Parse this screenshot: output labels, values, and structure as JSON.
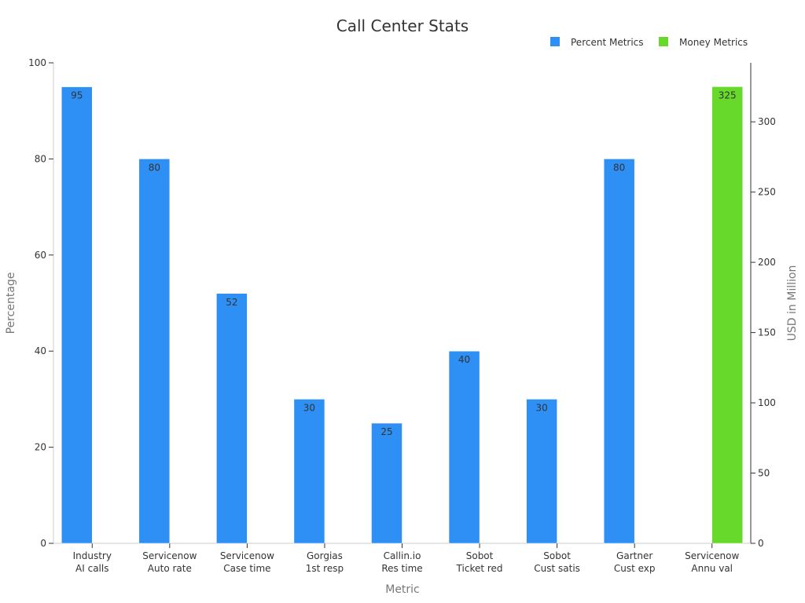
{
  "chart_data": {
    "type": "bar",
    "title": "Call Center Stats",
    "xlabel": "Metric",
    "ylabel": "Percentage",
    "y2label": "USD in Million",
    "ylim": [
      0,
      100
    ],
    "y2lim": [
      0,
      342
    ],
    "yticks": [
      0,
      20,
      40,
      60,
      80,
      100
    ],
    "y2ticks": [
      0,
      50,
      100,
      150,
      200,
      250,
      300
    ],
    "legend_position": "top-right",
    "categories": [
      [
        "Industry",
        "AI calls"
      ],
      [
        "Servicenow",
        "Auto rate"
      ],
      [
        "Servicenow",
        "Case time"
      ],
      [
        "Gorgias",
        "1st resp"
      ],
      [
        "Callin.io",
        "Res time"
      ],
      [
        "Sobot",
        "Ticket red"
      ],
      [
        "Sobot",
        "Cust satis"
      ],
      [
        "Gartner",
        "Cust exp"
      ],
      [
        "Servicenow",
        "Annu val"
      ]
    ],
    "series": [
      {
        "name": "Percent Metrics",
        "color": "#2E8FF5",
        "axis": "left",
        "values": [
          95,
          80,
          52,
          30,
          25,
          40,
          30,
          80,
          0
        ],
        "labels": [
          "95",
          "80",
          "52",
          "30",
          "25",
          "40",
          "30",
          "80",
          ""
        ]
      },
      {
        "name": "Money Metrics",
        "color": "#66D92A",
        "axis": "right",
        "values": [
          0,
          0,
          0,
          0,
          0,
          0,
          0,
          0,
          325
        ],
        "labels": [
          "",
          "",
          "",
          "",
          "",
          "",
          "",
          "",
          "325"
        ]
      }
    ]
  }
}
